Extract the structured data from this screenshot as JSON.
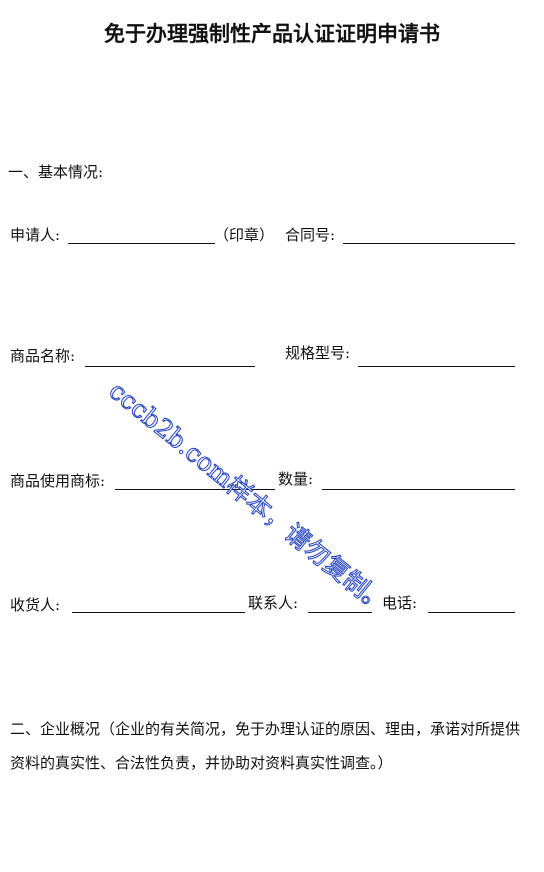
{
  "header": {
    "title": "免于办理强制性产品认证证明申请书"
  },
  "section1": {
    "heading": "一、基本情况:",
    "rows": [
      {
        "fields": [
          "申请人:",
          "（印章）",
          "合同号:"
        ]
      },
      {
        "fields": [
          "商品名称:",
          "规格型号:"
        ]
      },
      {
        "fields": [
          "商品使用商标:",
          "数量:"
        ]
      },
      {
        "fields": [
          "收货人:",
          "联系人:",
          "电话:"
        ]
      }
    ]
  },
  "section2": {
    "heading": "二、企业概况（企业的有关简况，免于办理认证的原因、理由，承诺对所提供资料的真实性、合法性负责，并协助对资料真实性调查。）"
  },
  "watermark": "cccb2b.com样本，请勿复制。"
}
